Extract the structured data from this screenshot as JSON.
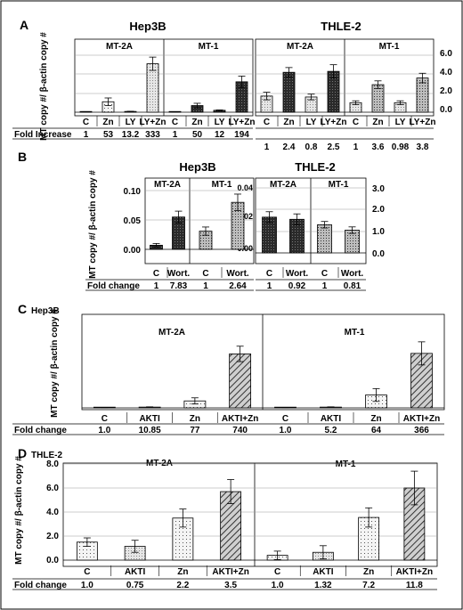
{
  "chart_data": [
    {
      "panel_label": "A",
      "type": "bar",
      "ylabel": "MT copy #/ β-actin copy #",
      "row_label": "Fold Increase",
      "subcharts": [
        {
          "cell_line": "Hep3B",
          "ylim": [
            0,
            3.0
          ],
          "groups": [
            {
              "title": "MT-2A",
              "categories": [
                "C",
                "Zn",
                "LY",
                "LY+Zn"
              ],
              "values": [
                0.02,
                0.55,
                0.04,
                2.55
              ],
              "errors": [
                0.01,
                0.2,
                0.01,
                0.35
              ],
              "fold": [
                "1",
                "53",
                "13.2",
                "333"
              ]
            },
            {
              "title": "MT-1",
              "categories": [
                "C",
                "Zn",
                "LY",
                "LY+Zn"
              ],
              "values": [
                0.01,
                0.35,
                0.1,
                1.6
              ],
              "errors": [
                0.01,
                0.12,
                0.02,
                0.3
              ],
              "fold": [
                "1",
                "50",
                "12",
                "194"
              ]
            }
          ]
        },
        {
          "cell_line": "THLE-2",
          "ylim": [
            0,
            6.0
          ],
          "yticks": [
            "0.0",
            "2.0",
            "4.0",
            "6.0"
          ],
          "groups": [
            {
              "title": "MT-2A",
              "categories": [
                "C",
                "Zn",
                "LY",
                "LY+Zn"
              ],
              "values": [
                1.7,
                4.2,
                1.6,
                4.3
              ],
              "errors": [
                0.4,
                0.5,
                0.3,
                0.7
              ],
              "fold": [
                "1",
                "2.4",
                "0.8",
                "2.5"
              ]
            },
            {
              "title": "MT-1",
              "categories": [
                "C",
                "Zn",
                "LY",
                "LY+Zn"
              ],
              "values": [
                1.0,
                2.9,
                1.0,
                3.6
              ],
              "errors": [
                0.2,
                0.4,
                0.2,
                0.5
              ],
              "fold": [
                "1",
                "3.6",
                "0.98",
                "3.8"
              ]
            }
          ]
        }
      ]
    },
    {
      "panel_label": "B",
      "type": "bar",
      "ylabel": "MT copy #/ β-actin copy #",
      "row_label": "Fold change",
      "subcharts": [
        {
          "cell_line": "Hep3B",
          "ylim": [
            0,
            0.1
          ],
          "yticks": [
            "0.00",
            "0.05",
            "0.10"
          ],
          "groups": [
            {
              "title": "MT-2A",
              "categories": [
                "C",
                "Wort."
              ],
              "values": [
                0.007,
                0.055
              ],
              "errors": [
                0.003,
                0.01
              ],
              "fold": [
                "1",
                "7.83"
              ]
            },
            {
              "title": "MT-1",
              "categories": [
                "C",
                "Wort."
              ],
              "values": [
                0.031,
                0.08
              ],
              "errors": [
                0.007,
                0.014
              ],
              "fold": [
                "1",
                "2.64"
              ]
            }
          ]
        },
        {
          "cell_line": "THLE-2",
          "ylim": [
            0,
            3.0
          ],
          "yticks_left": [
            "0.00",
            "0.02",
            "0.04"
          ],
          "yticks_right": [
            "0.0",
            "1.0",
            "2.0",
            "3.0"
          ],
          "groups": [
            {
              "title": "MT-2A",
              "categories": [
                "C",
                "Wort."
              ],
              "values": [
                1.65,
                1.55
              ],
              "errors": [
                0.25,
                0.25
              ],
              "fold": [
                "1",
                "0.92"
              ]
            },
            {
              "title": "MT-1",
              "categories": [
                "C",
                "Wort."
              ],
              "values": [
                1.3,
                1.05
              ],
              "errors": [
                0.15,
                0.15
              ],
              "fold": [
                "1",
                "0.81"
              ]
            }
          ]
        }
      ]
    },
    {
      "panel_label": "C",
      "panel_title": "Hep3B",
      "type": "bar",
      "ylabel": "MT copy #/ β-actin copy #",
      "row_label": "Fold change",
      "ylim": [
        0,
        2.6
      ],
      "groups": [
        {
          "title": "MT-2A",
          "categories": [
            "C",
            "AKTI",
            "Zn",
            "AKTI+Zn"
          ],
          "values": [
            0.003,
            0.03,
            0.27,
            2.1
          ],
          "errors": [
            0.002,
            0.01,
            0.12,
            0.3
          ],
          "fold": [
            "1.0",
            "10.85",
            "77",
            "740"
          ]
        },
        {
          "title": "MT-1",
          "categories": [
            "C",
            "AKTI",
            "Zn",
            "AKTI+Zn"
          ],
          "values": [
            0.006,
            0.03,
            0.5,
            2.12
          ],
          "errors": [
            0.003,
            0.01,
            0.25,
            0.45
          ],
          "fold": [
            "1.0",
            "5.2",
            "64",
            "366"
          ]
        }
      ]
    },
    {
      "panel_label": "D",
      "panel_title": "THLE-2",
      "type": "bar",
      "ylabel": "MT copy #/ β-actin copy #",
      "row_label": "Fold change",
      "ylim": [
        0,
        8.0
      ],
      "yticks": [
        "0.0",
        "2.0",
        "4.0",
        "6.0",
        "8.0"
      ],
      "groups": [
        {
          "title": "MT-2A",
          "categories": [
            "C",
            "AKTI",
            "Zn",
            "AKTI+Zn"
          ],
          "values": [
            1.5,
            1.15,
            3.5,
            5.7
          ],
          "errors": [
            0.35,
            0.5,
            0.75,
            1.0
          ],
          "fold": [
            "1.0",
            "0.75",
            "2.2",
            "3.5"
          ]
        },
        {
          "title": "MT-1",
          "categories": [
            "C",
            "AKTI",
            "Zn",
            "AKTI+Zn"
          ],
          "values": [
            0.4,
            0.65,
            3.55,
            6.0
          ],
          "errors": [
            0.35,
            0.55,
            0.8,
            1.4
          ],
          "fold": [
            "1.0",
            "1.32",
            "7.2",
            "11.8"
          ]
        }
      ]
    }
  ]
}
